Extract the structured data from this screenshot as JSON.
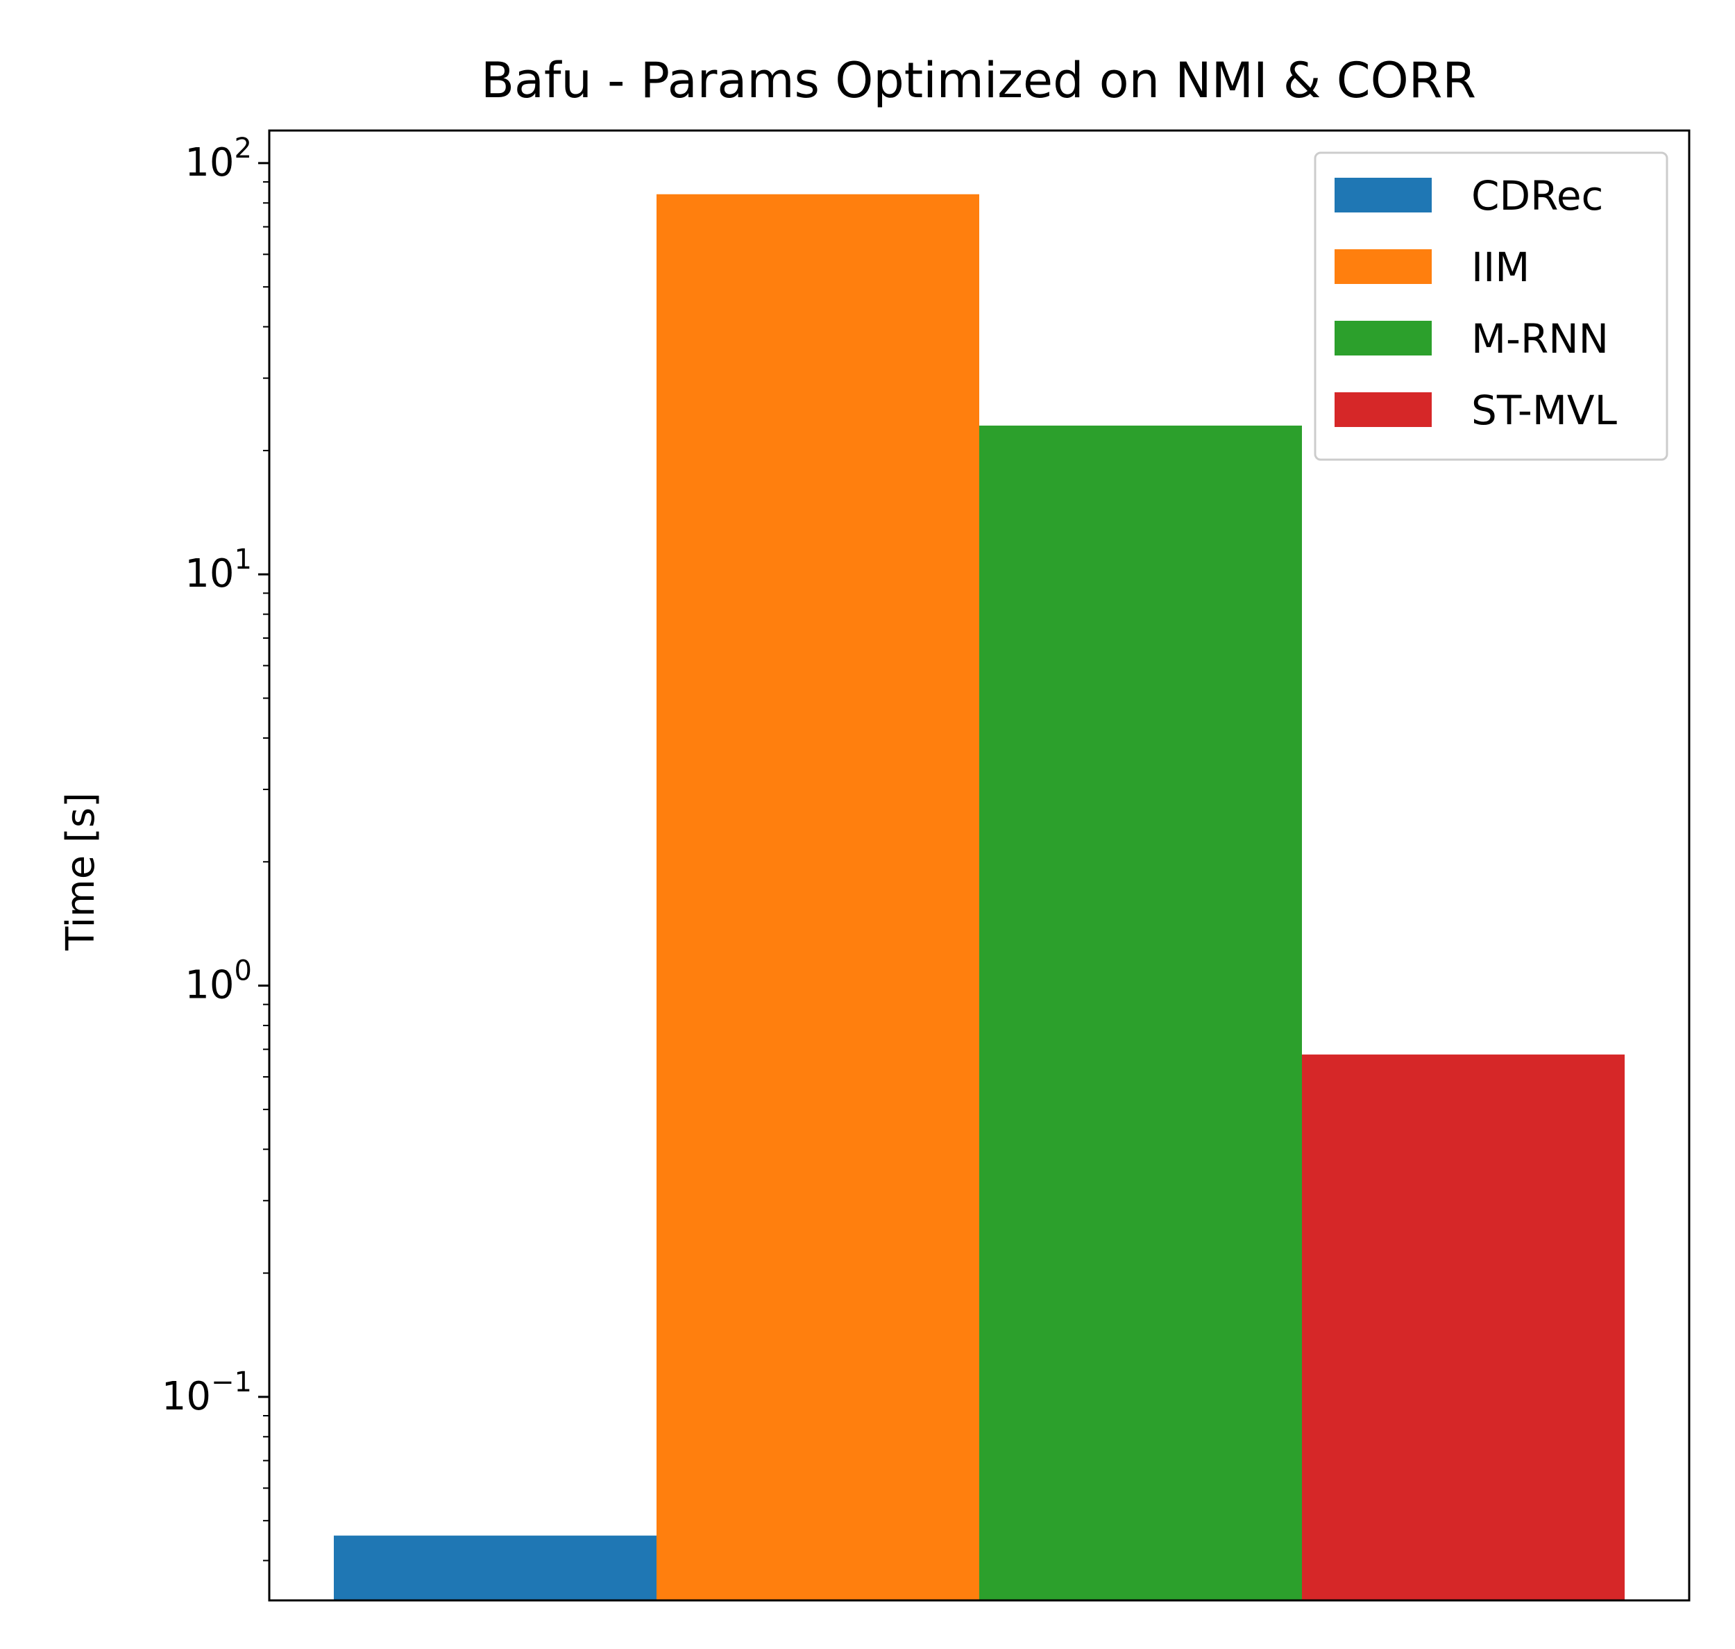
{
  "chart_data": {
    "type": "bar",
    "title": "Bafu - Params Optimized on NMI & CORR",
    "xlabel": "",
    "ylabel": "Time [s]",
    "yscale": "log",
    "ylim": [
      0.032,
      120
    ],
    "grid": false,
    "legend_position": "top-right",
    "y_ticks": [
      {
        "base": "10",
        "exp": "2",
        "value": 100
      },
      {
        "base": "10",
        "exp": "1",
        "value": 10
      },
      {
        "base": "10",
        "exp": "0",
        "value": 1
      },
      {
        "base": "10",
        "exp": "−1",
        "value": 0.1
      }
    ],
    "series": [
      {
        "name": "CDRec",
        "value": 0.046,
        "color": "#1f77b4"
      },
      {
        "name": "IIM",
        "value": 84,
        "color": "#ff7f0e"
      },
      {
        "name": "M-RNN",
        "value": 23,
        "color": "#2ca02c"
      },
      {
        "name": "ST-MVL",
        "value": 0.68,
        "color": "#d62728"
      }
    ]
  }
}
